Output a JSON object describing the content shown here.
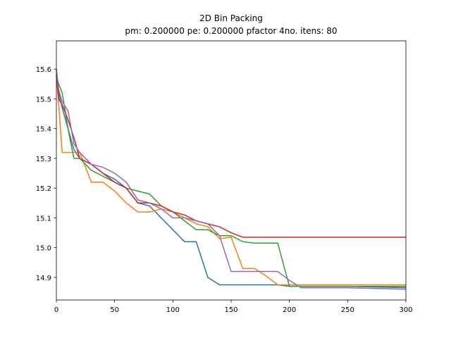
{
  "chart_data": {
    "type": "line",
    "title": "2D Bin Packing",
    "subtitle": "pm: 0.200000 pe: 0.200000 pfactor 4no. itens: 80",
    "x": [
      0,
      2,
      5,
      10,
      15,
      20,
      30,
      40,
      50,
      60,
      70,
      80,
      90,
      100,
      110,
      120,
      130,
      140,
      150,
      160,
      170,
      180,
      190,
      200,
      210,
      250,
      300
    ],
    "xlim": [
      0,
      300
    ],
    "xticks": [
      0,
      50,
      100,
      150,
      200,
      250,
      300
    ],
    "ylim": [
      14.824,
      15.695
    ],
    "yticks": [
      14.9,
      {
        "value": 15,
        "label": "15.0"
      },
      15.1,
      15.2,
      15.3,
      15.4,
      15.5,
      15.6
    ],
    "series": [
      {
        "color": "#1f77b4",
        "values": [
          15.6,
          15.52,
          15.47,
          15.4,
          15.33,
          15.3,
          15.28,
          15.25,
          15.23,
          15.2,
          15.15,
          15.14,
          15.1,
          15.06,
          15.02,
          15.02,
          14.9,
          14.875,
          14.875,
          14.875,
          14.875,
          14.875,
          14.875,
          14.87,
          14.87,
          14.87,
          14.865
        ]
      },
      {
        "color": "#ff7f0e",
        "values": [
          15.58,
          15.48,
          15.32,
          15.32,
          15.32,
          15.32,
          15.22,
          15.22,
          15.19,
          15.15,
          15.12,
          15.12,
          15.13,
          15.12,
          15.1,
          15.08,
          15.07,
          15.03,
          15.035,
          14.93,
          14.93,
          14.905,
          14.875,
          14.875,
          14.875,
          14.875,
          14.875
        ]
      },
      {
        "color": "#2ca02c",
        "values": [
          15.58,
          15.55,
          15.52,
          15.4,
          15.3,
          15.3,
          15.26,
          15.24,
          15.22,
          15.2,
          15.19,
          15.18,
          15.14,
          15.12,
          15.09,
          15.06,
          15.06,
          15.04,
          15.04,
          15.02,
          15.015,
          15.015,
          15.015,
          14.87,
          14.87,
          14.87,
          14.87
        ]
      },
      {
        "color": "#d62728",
        "values": [
          15.58,
          15.5,
          15.48,
          15.43,
          15.37,
          15.3,
          15.28,
          15.25,
          15.22,
          15.2,
          15.15,
          15.15,
          15.14,
          15.12,
          15.11,
          15.09,
          15.08,
          15.07,
          15.05,
          15.035,
          15.035,
          15.035,
          15.035,
          15.035,
          15.035,
          15.035,
          15.035
        ]
      },
      {
        "color": "#9467bd",
        "values": [
          15.6,
          15.53,
          15.49,
          15.46,
          15.35,
          15.32,
          15.28,
          15.27,
          15.25,
          15.22,
          15.16,
          15.15,
          15.13,
          15.1,
          15.1,
          15.09,
          15.08,
          15.04,
          14.92,
          14.92,
          14.92,
          14.92,
          14.92,
          14.89,
          14.865,
          14.865,
          14.86
        ]
      }
    ]
  }
}
